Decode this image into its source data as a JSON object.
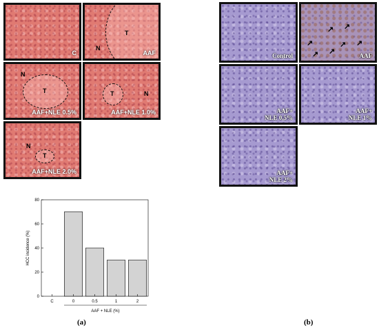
{
  "figure_a": {
    "caption": "(a)",
    "panels": [
      {
        "label": "C"
      },
      {
        "label": "AAF",
        "marks": [
          "N",
          "T"
        ]
      },
      {
        "label": "AAF+NLE 0.5%",
        "marks": [
          "N",
          "T"
        ]
      },
      {
        "label": "AAF+NLE 1.0%",
        "marks": [
          "T",
          "N"
        ]
      },
      {
        "label": "AAF+NLE 2.0%",
        "marks": [
          "N",
          "T"
        ]
      }
    ]
  },
  "figure_b": {
    "caption": "(b)",
    "panels": [
      {
        "label_line1": "Control",
        "label_line2": ""
      },
      {
        "label_line1": "AAF",
        "label_line2": ""
      },
      {
        "label_line1": "AAF+",
        "label_line2": "NLE 0.5%"
      },
      {
        "label_line1": "AAF+",
        "label_line2": "NLE 1%"
      },
      {
        "label_line1": "AAF+",
        "label_line2": "NLE 2%"
      }
    ]
  },
  "chart_data": {
    "type": "bar",
    "categories": [
      "C",
      "0",
      "0.5",
      "1",
      "2"
    ],
    "values": [
      0,
      70,
      40,
      30,
      30
    ],
    "xlabel": "AAF + NLE (%)",
    "ylabel": "HCC incidence (%)",
    "ylim": [
      0,
      80
    ],
    "yticks": [
      0,
      20,
      40,
      60,
      80
    ],
    "bar_color": "#d3d3d3",
    "grid": false
  }
}
